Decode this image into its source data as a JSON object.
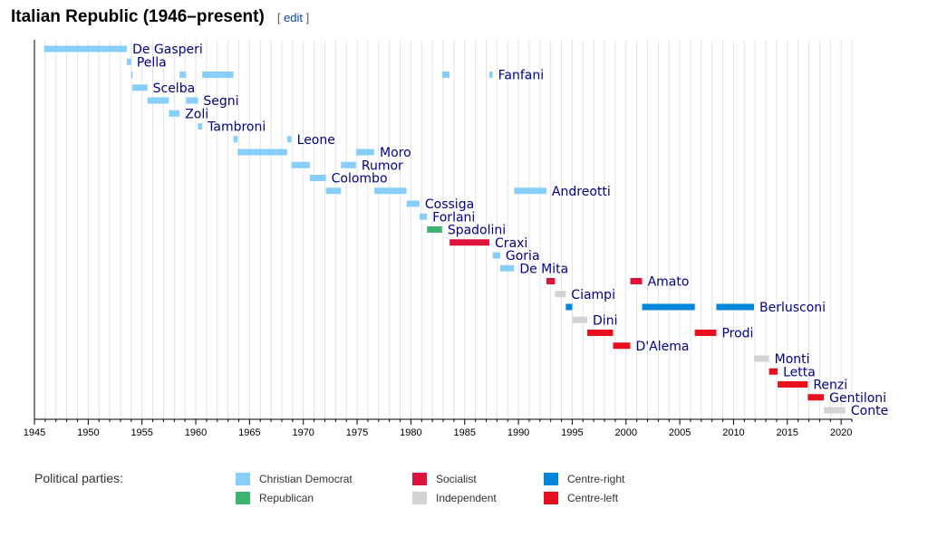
{
  "section": {
    "title": "Italian Republic (1946–present)",
    "edit_open": "[",
    "edit_label": "edit",
    "edit_close": "]"
  },
  "legend": {
    "title": "Political parties:",
    "items": [
      {
        "party": "Christian Democrat",
        "color": "#87CEFA"
      },
      {
        "party": "Socialist",
        "color": "#DC143C"
      },
      {
        "party": "Centre-right",
        "color": "#0087DC"
      },
      {
        "party": "Republican",
        "color": "#3CB371"
      },
      {
        "party": "Independent",
        "color": "#D3D3D3"
      },
      {
        "party": "Centre-left",
        "color": "#E8101C"
      }
    ]
  },
  "chart_data": {
    "type": "timeline",
    "title": "",
    "xlabel": "",
    "ylabel": "",
    "xlim": [
      1945,
      2021
    ],
    "x_ticks": [
      1945,
      1950,
      1955,
      1960,
      1965,
      1970,
      1975,
      1980,
      1985,
      1990,
      1995,
      2000,
      2005,
      2010,
      2015,
      2020
    ],
    "grid": "vertical, every year",
    "rows": [
      {
        "name": "De Gasperi",
        "party": "Christian Democrat",
        "terms": [
          [
            1945.9,
            1953.6
          ]
        ]
      },
      {
        "name": "Pella",
        "party": "Christian Democrat",
        "terms": [
          [
            1953.6,
            1954.0
          ]
        ]
      },
      {
        "name": "Fanfani",
        "party": "Christian Democrat",
        "terms": [
          [
            1954.0,
            1954.1
          ],
          [
            1958.5,
            1959.1
          ],
          [
            1960.6,
            1963.5
          ],
          [
            1982.9,
            1983.6
          ],
          [
            1987.3,
            1987.6
          ]
        ]
      },
      {
        "name": "Scelba",
        "party": "Christian Democrat",
        "terms": [
          [
            1954.1,
            1955.5
          ]
        ]
      },
      {
        "name": "Segni",
        "party": "Christian Democrat",
        "terms": [
          [
            1955.5,
            1957.5
          ],
          [
            1959.1,
            1960.2
          ]
        ]
      },
      {
        "name": "Zoli",
        "party": "Christian Democrat",
        "terms": [
          [
            1957.5,
            1958.5
          ]
        ]
      },
      {
        "name": "Tambroni",
        "party": "Christian Democrat",
        "terms": [
          [
            1960.2,
            1960.6
          ]
        ]
      },
      {
        "name": "Leone",
        "party": "Christian Democrat",
        "terms": [
          [
            1963.5,
            1963.9
          ],
          [
            1968.5,
            1968.9
          ]
        ]
      },
      {
        "name": "Moro",
        "party": "Christian Democrat",
        "terms": [
          [
            1963.9,
            1968.5
          ],
          [
            1974.9,
            1976.6
          ]
        ]
      },
      {
        "name": "Rumor",
        "party": "Christian Democrat",
        "terms": [
          [
            1968.9,
            1970.6
          ],
          [
            1973.5,
            1974.9
          ]
        ]
      },
      {
        "name": "Colombo",
        "party": "Christian Democrat",
        "terms": [
          [
            1970.6,
            1972.1
          ]
        ]
      },
      {
        "name": "Andreotti",
        "party": "Christian Democrat",
        "terms": [
          [
            1972.1,
            1973.5
          ],
          [
            1976.6,
            1979.6
          ],
          [
            1989.6,
            1992.6
          ]
        ]
      },
      {
        "name": "Cossiga",
        "party": "Christian Democrat",
        "terms": [
          [
            1979.6,
            1980.8
          ]
        ]
      },
      {
        "name": "Forlani",
        "party": "Christian Democrat",
        "terms": [
          [
            1980.8,
            1981.5
          ]
        ]
      },
      {
        "name": "Spadolini",
        "party": "Republican",
        "terms": [
          [
            1981.5,
            1982.9
          ]
        ]
      },
      {
        "name": "Craxi",
        "party": "Socialist",
        "terms": [
          [
            1983.6,
            1987.3
          ]
        ]
      },
      {
        "name": "Goria",
        "party": "Christian Democrat",
        "terms": [
          [
            1987.6,
            1988.3
          ]
        ]
      },
      {
        "name": "De Mita",
        "party": "Christian Democrat",
        "terms": [
          [
            1988.3,
            1989.6
          ]
        ]
      },
      {
        "name": "Amato",
        "party": "Socialist",
        "terms": [
          [
            1992.6,
            1993.4
          ],
          [
            2000.4,
            2001.5
          ]
        ]
      },
      {
        "name": "Ciampi",
        "party": "Independent",
        "terms": [
          [
            1993.4,
            1994.4
          ]
        ]
      },
      {
        "name": "Berlusconi",
        "party": "Centre-right",
        "terms": [
          [
            1994.4,
            1995.0
          ],
          [
            2001.5,
            2006.4
          ],
          [
            2008.4,
            2011.9
          ]
        ]
      },
      {
        "name": "Dini",
        "party": "Independent",
        "terms": [
          [
            1995.0,
            1996.4
          ]
        ]
      },
      {
        "name": "Prodi",
        "party": "Centre-left",
        "terms": [
          [
            1996.4,
            1998.8
          ],
          [
            2006.4,
            2008.4
          ]
        ]
      },
      {
        "name": "D'Alema",
        "party": "Centre-left",
        "terms": [
          [
            1998.8,
            2000.4
          ]
        ]
      },
      {
        "name": "Monti",
        "party": "Independent",
        "terms": [
          [
            2011.9,
            2013.3
          ]
        ]
      },
      {
        "name": "Letta",
        "party": "Centre-left",
        "terms": [
          [
            2013.3,
            2014.1
          ]
        ]
      },
      {
        "name": "Renzi",
        "party": "Centre-left",
        "terms": [
          [
            2014.1,
            2016.9
          ]
        ]
      },
      {
        "name": "Gentiloni",
        "party": "Centre-left",
        "terms": [
          [
            2016.9,
            2018.4
          ]
        ]
      },
      {
        "name": "Conte",
        "party": "Independent",
        "terms": [
          [
            2018.4,
            2020.4
          ]
        ]
      }
    ]
  }
}
